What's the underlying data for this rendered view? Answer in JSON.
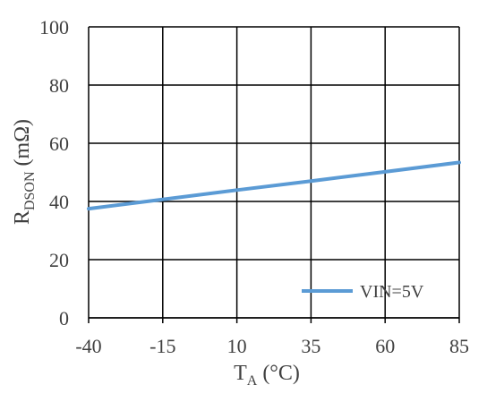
{
  "chart_data": {
    "type": "line",
    "x": [
      -40,
      -15,
      10,
      35,
      60,
      85
    ],
    "series": [
      {
        "name": "VIN=5V",
        "values": [
          37.5,
          40.7,
          43.9,
          47.0,
          50.2,
          53.4
        ]
      }
    ],
    "xticks": [
      "-40",
      "-15",
      "10",
      "35",
      "60",
      "85"
    ],
    "yticks": [
      "0",
      "20",
      "40",
      "60",
      "80",
      "100"
    ],
    "xlim": [
      -40,
      85
    ],
    "ylim": [
      0,
      100
    ],
    "xlabel": {
      "main": "T",
      "sub": "A",
      "unit": " (°C)"
    },
    "ylabel": {
      "main": "R",
      "sub": "DSON",
      "unit": " (mΩ)"
    },
    "grid": true,
    "legend_position": "bottom-right",
    "colors": {
      "line": "#5b9bd5",
      "grid": "#000000",
      "text": "#404040"
    }
  }
}
